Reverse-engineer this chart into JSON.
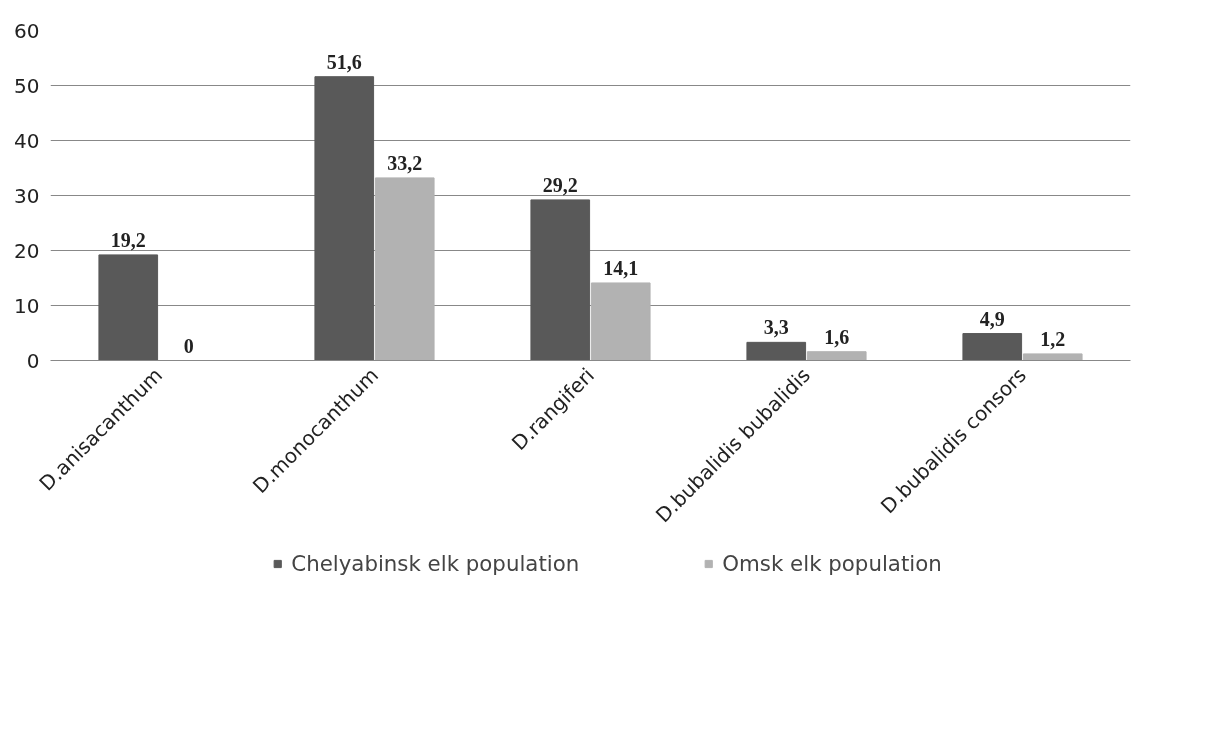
{
  "chart_data": {
    "type": "bar",
    "categories": [
      "D.anisacanthum",
      "D.monocanthum",
      "D.rangiferi",
      "D.bubalidis bubalidis",
      "D.bubalidis consors"
    ],
    "series": [
      {
        "name": "Chelyabinsk elk population",
        "color": "#595959",
        "values": [
          19.2,
          51.6,
          29.2,
          3.3,
          4.9
        ],
        "value_labels": [
          "19,2",
          "51,6",
          "29,2",
          "3,3",
          "4,9"
        ]
      },
      {
        "name": "Omsk elk population",
        "color": "#b2b2b2",
        "values": [
          0,
          33.2,
          14.1,
          1.6,
          1.2
        ],
        "value_labels": [
          "0",
          "33,2",
          "14,1",
          "1,6",
          "1,2"
        ]
      }
    ],
    "ylim": [
      0,
      60
    ],
    "yticks": [
      0,
      10,
      20,
      30,
      40,
      50,
      60
    ],
    "grid": "y",
    "legend": "bottom"
  }
}
